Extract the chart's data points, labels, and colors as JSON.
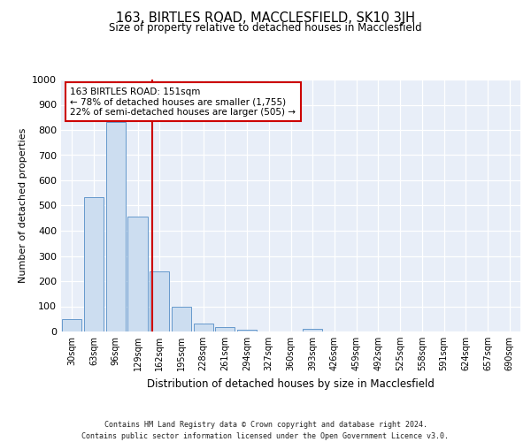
{
  "title": "163, BIRTLES ROAD, MACCLESFIELD, SK10 3JH",
  "subtitle": "Size of property relative to detached houses in Macclesfield",
  "xlabel": "Distribution of detached houses by size in Macclesfield",
  "ylabel": "Number of detached properties",
  "bar_color": "#ccddf0",
  "bar_edge_color": "#6699cc",
  "background_color": "#e8eef8",
  "categories": [
    "30sqm",
    "63sqm",
    "96sqm",
    "129sqm",
    "162sqm",
    "195sqm",
    "228sqm",
    "261sqm",
    "294sqm",
    "327sqm",
    "360sqm",
    "393sqm",
    "426sqm",
    "459sqm",
    "492sqm",
    "525sqm",
    "558sqm",
    "591sqm",
    "624sqm",
    "657sqm",
    "690sqm"
  ],
  "values": [
    50,
    535,
    830,
    457,
    240,
    97,
    33,
    18,
    8,
    0,
    0,
    10,
    0,
    0,
    0,
    0,
    0,
    0,
    0,
    0,
    0
  ],
  "ylim": [
    0,
    1000
  ],
  "yticks": [
    0,
    100,
    200,
    300,
    400,
    500,
    600,
    700,
    800,
    900,
    1000
  ],
  "annotation_text": "163 BIRTLES ROAD: 151sqm\n← 78% of detached houses are smaller (1,755)\n22% of semi-detached houses are larger (505) →",
  "annotation_box_color": "#ffffff",
  "annotation_edge_color": "#cc0000",
  "property_line_color": "#cc0000",
  "footer_line1": "Contains HM Land Registry data © Crown copyright and database right 2024.",
  "footer_line2": "Contains public sector information licensed under the Open Government Licence v3.0."
}
